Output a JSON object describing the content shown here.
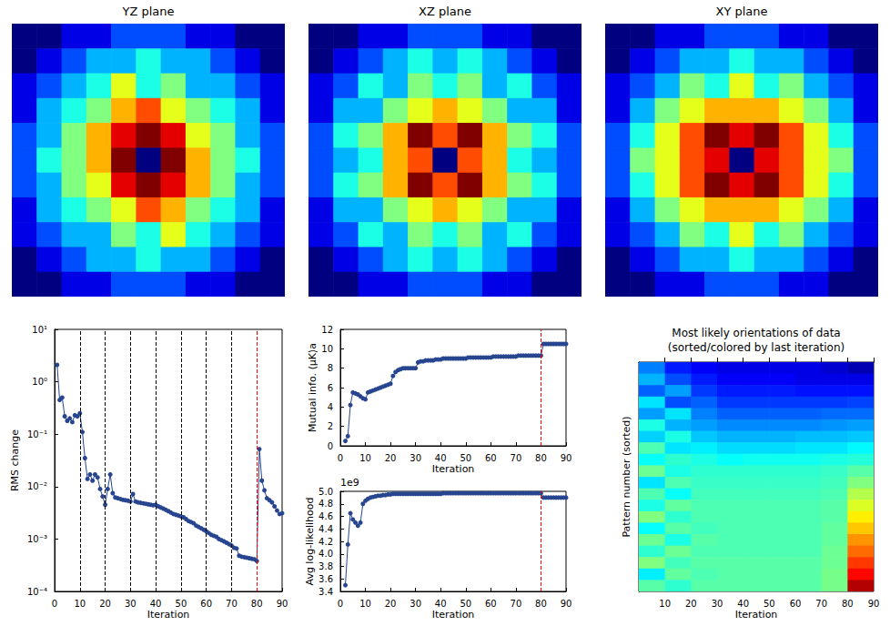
{
  "chart_data": [
    {
      "type": "heatmap",
      "title": "YZ plane",
      "tick_labels": false,
      "color_range": [
        0,
        10
      ],
      "cells": [
        [
          0,
          0,
          1,
          1,
          2,
          2,
          2,
          1,
          1,
          0,
          0
        ],
        [
          0,
          1,
          2,
          3,
          3,
          4,
          3,
          3,
          2,
          1,
          0
        ],
        [
          1,
          2,
          3,
          4,
          6,
          4,
          5,
          3,
          3,
          2,
          1
        ],
        [
          1,
          3,
          4,
          5,
          7,
          8,
          6,
          5,
          4,
          3,
          1
        ],
        [
          2,
          3,
          5,
          7,
          9,
          10,
          9,
          6,
          5,
          3,
          2
        ],
        [
          2,
          4,
          5,
          7,
          10,
          0,
          10,
          7,
          5,
          4,
          2
        ],
        [
          2,
          3,
          5,
          6,
          9,
          10,
          9,
          7,
          5,
          3,
          2
        ],
        [
          1,
          3,
          4,
          5,
          6,
          8,
          7,
          5,
          4,
          3,
          1
        ],
        [
          1,
          2,
          3,
          3,
          5,
          4,
          6,
          4,
          3,
          2,
          1
        ],
        [
          0,
          1,
          2,
          3,
          3,
          4,
          3,
          3,
          2,
          1,
          0
        ],
        [
          0,
          0,
          1,
          1,
          2,
          2,
          2,
          1,
          1,
          0,
          0
        ]
      ]
    },
    {
      "type": "heatmap",
      "title": "XZ plane",
      "tick_labels": false,
      "color_range": [
        0,
        10
      ],
      "cells": [
        [
          0,
          0,
          1,
          1,
          2,
          2,
          2,
          1,
          1,
          0,
          0
        ],
        [
          0,
          1,
          2,
          3,
          4,
          3,
          4,
          3,
          2,
          1,
          0
        ],
        [
          1,
          2,
          4,
          3,
          5,
          4,
          5,
          3,
          4,
          2,
          1
        ],
        [
          1,
          3,
          3,
          5,
          6,
          7,
          6,
          5,
          3,
          3,
          1
        ],
        [
          2,
          4,
          5,
          7,
          10,
          8,
          10,
          7,
          5,
          4,
          2
        ],
        [
          2,
          3,
          4,
          7,
          8,
          0,
          8,
          7,
          4,
          3,
          2
        ],
        [
          2,
          4,
          5,
          7,
          10,
          8,
          10,
          7,
          5,
          4,
          2
        ],
        [
          1,
          3,
          3,
          5,
          6,
          7,
          6,
          5,
          3,
          3,
          1
        ],
        [
          1,
          2,
          4,
          3,
          5,
          4,
          5,
          3,
          4,
          2,
          1
        ],
        [
          0,
          1,
          2,
          3,
          4,
          3,
          4,
          3,
          2,
          1,
          0
        ],
        [
          0,
          0,
          1,
          1,
          2,
          2,
          2,
          1,
          1,
          0,
          0
        ]
      ]
    },
    {
      "type": "heatmap",
      "title": "XY plane",
      "tick_labels": false,
      "color_range": [
        0,
        10
      ],
      "cells": [
        [
          0,
          0,
          1,
          1,
          2,
          2,
          2,
          1,
          1,
          0,
          0
        ],
        [
          0,
          1,
          2,
          3,
          3,
          4,
          3,
          3,
          2,
          1,
          0
        ],
        [
          1,
          2,
          3,
          5,
          4,
          6,
          4,
          5,
          3,
          2,
          1
        ],
        [
          1,
          3,
          5,
          6,
          7,
          7,
          7,
          6,
          5,
          3,
          1
        ],
        [
          2,
          4,
          6,
          8,
          10,
          9,
          10,
          8,
          6,
          4,
          2
        ],
        [
          2,
          5,
          6,
          8,
          9,
          0,
          9,
          8,
          6,
          5,
          2
        ],
        [
          2,
          4,
          6,
          8,
          10,
          9,
          10,
          8,
          6,
          4,
          2
        ],
        [
          1,
          3,
          5,
          6,
          7,
          7,
          7,
          6,
          5,
          3,
          1
        ],
        [
          1,
          2,
          3,
          5,
          4,
          6,
          4,
          5,
          3,
          2,
          1
        ],
        [
          0,
          1,
          2,
          3,
          3,
          4,
          3,
          3,
          2,
          1,
          0
        ],
        [
          0,
          0,
          1,
          1,
          2,
          2,
          2,
          1,
          1,
          0,
          0
        ]
      ]
    },
    {
      "type": "line",
      "x_label": "Iteration",
      "y_label": "RMS change",
      "log": "y",
      "grid": false,
      "marker": "circle",
      "color": "#27468f",
      "xlim": [
        0,
        90
      ],
      "xticks": [
        0,
        10,
        20,
        30,
        40,
        50,
        60,
        70,
        80,
        90
      ],
      "ylim": [
        0.0001,
        10
      ],
      "yticks": [
        {
          "value": 0.0001,
          "label": "10⁻⁴"
        },
        {
          "value": 0.001,
          "label": "10⁻³"
        },
        {
          "value": 0.01,
          "label": "10⁻²"
        },
        {
          "value": 0.1,
          "label": "10⁻¹"
        },
        {
          "value": 1,
          "label": "10⁰"
        },
        {
          "value": 10,
          "label": "10¹"
        }
      ],
      "vlines": [
        {
          "x": 10,
          "color": "#000000"
        },
        {
          "x": 20,
          "color": "#000000"
        },
        {
          "x": 30,
          "color": "#000000"
        },
        {
          "x": 40,
          "color": "#000000"
        },
        {
          "x": 50,
          "color": "#000000"
        },
        {
          "x": 60,
          "color": "#000000"
        },
        {
          "x": 70,
          "color": "#000000"
        },
        {
          "x": 80,
          "color": "#ff0000"
        }
      ],
      "x": [
        1,
        2,
        3,
        4,
        5,
        6,
        7,
        8,
        9,
        10,
        11,
        12,
        13,
        14,
        15,
        16,
        17,
        18,
        19,
        20,
        21,
        22,
        23,
        24,
        25,
        26,
        27,
        28,
        29,
        30,
        31,
        32,
        33,
        34,
        35,
        36,
        37,
        38,
        39,
        40,
        41,
        42,
        43,
        44,
        45,
        46,
        47,
        48,
        49,
        50,
        51,
        52,
        53,
        54,
        55,
        56,
        57,
        58,
        59,
        60,
        61,
        62,
        63,
        64,
        65,
        66,
        67,
        68,
        69,
        70,
        71,
        72,
        73,
        74,
        75,
        76,
        77,
        78,
        79,
        80,
        81,
        82,
        83,
        84,
        85,
        86,
        87,
        88,
        89,
        90
      ],
      "values": [
        2.1,
        0.45,
        0.5,
        0.22,
        0.18,
        0.2,
        0.17,
        0.23,
        0.22,
        0.25,
        0.11,
        0.035,
        0.014,
        0.017,
        0.013,
        0.017,
        0.015,
        0.009,
        0.0065,
        0.0045,
        0.009,
        0.017,
        0.0075,
        0.0062,
        0.006,
        0.0058,
        0.0056,
        0.0055,
        0.0054,
        0.0052,
        0.0072,
        0.0052,
        0.005,
        0.0049,
        0.0048,
        0.0047,
        0.0046,
        0.0045,
        0.0044,
        0.0045,
        0.0042,
        0.004,
        0.0038,
        0.0036,
        0.0034,
        0.0032,
        0.003,
        0.0029,
        0.0028,
        0.0027,
        0.0026,
        0.0024,
        0.0022,
        0.0021,
        0.002,
        0.0018,
        0.0017,
        0.0016,
        0.0015,
        0.0014,
        0.0013,
        0.0012,
        0.00115,
        0.0011,
        0.001,
        0.00095,
        0.0009,
        0.00085,
        0.0008,
        0.00075,
        0.00068,
        0.00066,
        0.00048,
        0.00046,
        0.00045,
        0.00044,
        0.00043,
        0.00042,
        0.00041,
        0.00038,
        0.052,
        0.013,
        0.0085,
        0.006,
        0.0055,
        0.005,
        0.0042,
        0.0035,
        0.003,
        0.0031
      ]
    },
    {
      "type": "line",
      "x_label": "Iteration",
      "y_label": "Mutual info. ⟨μK⟩a",
      "grid": false,
      "marker": "circle",
      "color": "#27468f",
      "xlim": [
        0,
        90
      ],
      "xticks": [
        0,
        10,
        20,
        30,
        40,
        50,
        60,
        70,
        80,
        90
      ],
      "ylim": [
        0,
        12
      ],
      "yticks": [
        0,
        2,
        4,
        6,
        8,
        10,
        12
      ],
      "vlines": [
        {
          "x": 80,
          "color": "#ff0000"
        }
      ],
      "x": [
        2,
        3,
        4,
        5,
        6,
        7,
        8,
        9,
        10,
        11,
        12,
        13,
        14,
        15,
        16,
        17,
        18,
        19,
        20,
        21,
        22,
        23,
        24,
        25,
        26,
        27,
        28,
        29,
        30,
        31,
        32,
        33,
        34,
        35,
        36,
        37,
        38,
        39,
        40,
        41,
        42,
        43,
        44,
        45,
        46,
        47,
        48,
        49,
        50,
        51,
        52,
        53,
        54,
        55,
        56,
        57,
        58,
        59,
        60,
        61,
        62,
        63,
        64,
        65,
        66,
        67,
        68,
        69,
        70,
        71,
        72,
        73,
        74,
        75,
        76,
        77,
        78,
        79,
        80,
        81,
        82,
        83,
        84,
        85,
        86,
        87,
        88,
        89,
        90
      ],
      "values": [
        0.5,
        1.0,
        4.2,
        5.5,
        5.4,
        5.3,
        5.1,
        4.9,
        4.8,
        5.5,
        5.6,
        5.7,
        5.8,
        5.9,
        6.0,
        6.1,
        6.2,
        6.3,
        6.4,
        7.2,
        7.6,
        7.8,
        7.9,
        8.0,
        8.0,
        8.0,
        8.0,
        8.0,
        8.0,
        8.6,
        8.7,
        8.7,
        8.8,
        8.8,
        8.8,
        8.8,
        8.9,
        8.9,
        8.9,
        9.0,
        9.0,
        9.0,
        9.0,
        9.0,
        9.0,
        9.0,
        9.0,
        9.0,
        9.0,
        9.1,
        9.1,
        9.1,
        9.1,
        9.1,
        9.1,
        9.1,
        9.1,
        9.1,
        9.1,
        9.2,
        9.2,
        9.2,
        9.2,
        9.2,
        9.2,
        9.2,
        9.2,
        9.2,
        9.2,
        9.3,
        9.3,
        9.3,
        9.3,
        9.3,
        9.3,
        9.3,
        9.3,
        9.3,
        9.3,
        10.5,
        10.5,
        10.5,
        10.5,
        10.5,
        10.5,
        10.5,
        10.5,
        10.5,
        10.5
      ]
    },
    {
      "type": "line",
      "x_label": "Iteration",
      "y_label": "Avg log-likelihood",
      "y_scale_label": "1e9",
      "grid": false,
      "marker": "circle",
      "color": "#27468f",
      "xlim": [
        0,
        90
      ],
      "xticks": [
        0,
        10,
        20,
        30,
        40,
        50,
        60,
        70,
        80,
        90
      ],
      "ylim": [
        3.4,
        5.0
      ],
      "yticks": [
        3.4,
        3.6,
        3.8,
        {
          "value": 4,
          "label": "4.0"
        },
        4.2,
        4.4,
        4.6,
        4.8,
        {
          "value": 5,
          "label": "5.0"
        }
      ],
      "vlines": [
        {
          "x": 80,
          "color": "#ff0000"
        }
      ],
      "x": [
        2,
        3,
        4,
        5,
        6,
        7,
        8,
        9,
        10,
        11,
        12,
        13,
        14,
        15,
        16,
        17,
        18,
        19,
        20,
        21,
        22,
        23,
        24,
        25,
        26,
        27,
        28,
        29,
        30,
        31,
        32,
        33,
        34,
        35,
        36,
        37,
        38,
        39,
        40,
        41,
        42,
        43,
        44,
        45,
        46,
        47,
        48,
        49,
        50,
        51,
        52,
        53,
        54,
        55,
        56,
        57,
        58,
        59,
        60,
        61,
        62,
        63,
        64,
        65,
        66,
        67,
        68,
        69,
        70,
        71,
        72,
        73,
        74,
        75,
        76,
        77,
        78,
        79,
        80,
        81,
        82,
        83,
        84,
        85,
        86,
        87,
        88,
        89,
        90
      ],
      "values": [
        3.5,
        4.15,
        4.65,
        4.55,
        4.5,
        4.45,
        4.5,
        4.8,
        4.85,
        4.88,
        4.9,
        4.91,
        4.92,
        4.93,
        4.93,
        4.94,
        4.94,
        4.95,
        4.95,
        4.96,
        4.96,
        4.96,
        4.96,
        4.96,
        4.96,
        4.96,
        4.96,
        4.96,
        4.96,
        4.96,
        4.96,
        4.96,
        4.96,
        4.96,
        4.96,
        4.96,
        4.96,
        4.96,
        4.96,
        4.97,
        4.97,
        4.97,
        4.97,
        4.97,
        4.97,
        4.97,
        4.97,
        4.97,
        4.97,
        4.97,
        4.97,
        4.97,
        4.97,
        4.97,
        4.97,
        4.97,
        4.97,
        4.97,
        4.97,
        4.97,
        4.97,
        4.97,
        4.97,
        4.97,
        4.97,
        4.97,
        4.97,
        4.97,
        4.97,
        4.97,
        4.97,
        4.97,
        4.97,
        4.97,
        4.97,
        4.97,
        4.97,
        4.97,
        4.97,
        4.9,
        4.9,
        4.9,
        4.9,
        4.9,
        4.9,
        4.9,
        4.9,
        4.9,
        4.9
      ]
    },
    {
      "type": "heatmap",
      "title": "Most likely orientations of data",
      "subtitle": "(sorted/colored by last iteration)",
      "x_label": "Iteration",
      "y_label": "Pattern number (sorted)",
      "tick_labels": "x",
      "xlim": [
        0,
        90
      ],
      "xticks": [
        10,
        20,
        30,
        40,
        50,
        60,
        70,
        80,
        90
      ],
      "x_edges": [
        0,
        10,
        20,
        30,
        40,
        50,
        60,
        70,
        80,
        90
      ],
      "color_range": [
        0,
        1
      ],
      "cells": [
        [
          0.25,
          0.15,
          0.12,
          0.1,
          0.1,
          0.1,
          0.1,
          0.08,
          0.05
        ],
        [
          0.3,
          0.2,
          0.15,
          0.12,
          0.12,
          0.12,
          0.1,
          0.1,
          0.1
        ],
        [
          0.22,
          0.28,
          0.18,
          0.15,
          0.15,
          0.15,
          0.14,
          0.14,
          0.14
        ],
        [
          0.35,
          0.2,
          0.22,
          0.18,
          0.18,
          0.18,
          0.18,
          0.18,
          0.19
        ],
        [
          0.28,
          0.35,
          0.25,
          0.22,
          0.22,
          0.22,
          0.22,
          0.23,
          0.23
        ],
        [
          0.4,
          0.3,
          0.28,
          0.26,
          0.26,
          0.26,
          0.26,
          0.27,
          0.28
        ],
        [
          0.33,
          0.4,
          0.32,
          0.3,
          0.3,
          0.3,
          0.31,
          0.31,
          0.32
        ],
        [
          0.45,
          0.35,
          0.36,
          0.34,
          0.34,
          0.34,
          0.35,
          0.35,
          0.37
        ],
        [
          0.38,
          0.42,
          0.4,
          0.38,
          0.39,
          0.39,
          0.39,
          0.4,
          0.41
        ],
        [
          0.48,
          0.4,
          0.42,
          0.42,
          0.42,
          0.42,
          0.42,
          0.43,
          0.46
        ],
        [
          0.35,
          0.45,
          0.43,
          0.43,
          0.43,
          0.43,
          0.43,
          0.44,
          0.5
        ],
        [
          0.45,
          0.38,
          0.44,
          0.44,
          0.44,
          0.44,
          0.44,
          0.45,
          0.55
        ],
        [
          0.4,
          0.47,
          0.45,
          0.45,
          0.45,
          0.45,
          0.45,
          0.46,
          0.59
        ],
        [
          0.5,
          0.42,
          0.45,
          0.45,
          0.45,
          0.45,
          0.45,
          0.46,
          0.64
        ],
        [
          0.38,
          0.46,
          0.44,
          0.45,
          0.45,
          0.45,
          0.45,
          0.47,
          0.68
        ],
        [
          0.48,
          0.4,
          0.46,
          0.45,
          0.45,
          0.45,
          0.45,
          0.47,
          0.73
        ],
        [
          0.42,
          0.48,
          0.45,
          0.45,
          0.45,
          0.45,
          0.45,
          0.48,
          0.77
        ],
        [
          0.5,
          0.44,
          0.46,
          0.46,
          0.46,
          0.46,
          0.46,
          0.48,
          0.82
        ],
        [
          0.36,
          0.47,
          0.45,
          0.46,
          0.46,
          0.46,
          0.46,
          0.49,
          0.87
        ],
        [
          0.46,
          0.42,
          0.46,
          0.46,
          0.46,
          0.46,
          0.46,
          0.49,
          0.95
        ]
      ]
    }
  ]
}
